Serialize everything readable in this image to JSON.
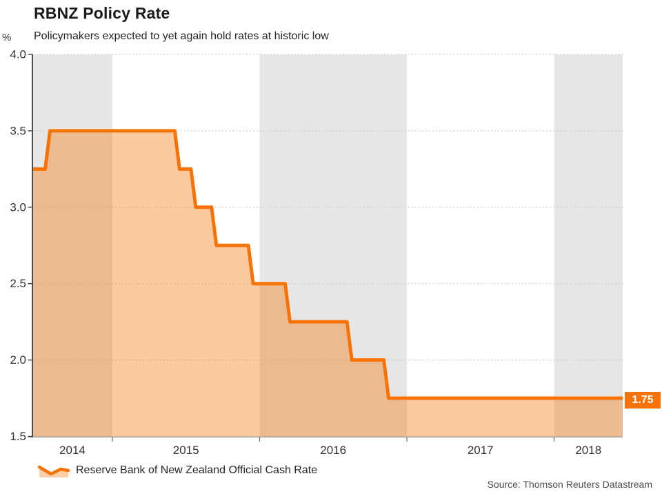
{
  "header": {
    "title": "RBNZ Policy Rate",
    "subtitle": "Policymakers expected to yet again hold rates at historic low",
    "unit_label": "%"
  },
  "legend": {
    "label": "Reserve Bank of New Zealand Official Cash Rate"
  },
  "footer": {
    "source": "Source: Thomson Reuters Datastream"
  },
  "chart_data": {
    "type": "area",
    "step": true,
    "title": "RBNZ Policy Rate",
    "subtitle": "Policymakers expected to yet again hold rates at historic low",
    "ylabel": "%",
    "xlim": [
      2014.457,
      2018.466
    ],
    "ylim": [
      1.5,
      4.0
    ],
    "yticks": [
      {
        "value": 4.0,
        "label": "4.0"
      },
      {
        "value": 3.5,
        "label": "3.5"
      },
      {
        "value": 3.0,
        "label": "3.0"
      },
      {
        "value": 2.5,
        "label": "2.5"
      },
      {
        "value": 2.0,
        "label": "2.0"
      },
      {
        "value": 1.5,
        "label": "1.5"
      }
    ],
    "xticks": [
      {
        "year": 2014,
        "label": "2014"
      },
      {
        "year": 2015,
        "label": "2015"
      },
      {
        "year": 2016,
        "label": "2016"
      },
      {
        "year": 2017,
        "label": "2017"
      },
      {
        "year": 2018,
        "label": "2018"
      }
    ],
    "shaded_years": [
      2014,
      2016,
      2018
    ],
    "grid": "dotted-horizontal",
    "legend_position": "bottom-left",
    "series": [
      {
        "name": "Reserve Bank of New Zealand Official Cash Rate",
        "points": [
          [
            2014.457,
            3.25
          ],
          [
            2014.56,
            3.5
          ],
          [
            2015.44,
            3.25
          ],
          [
            2015.55,
            3.0
          ],
          [
            2015.69,
            2.75
          ],
          [
            2015.94,
            2.5
          ],
          [
            2016.19,
            2.25
          ],
          [
            2016.61,
            2.0
          ],
          [
            2016.86,
            1.75
          ],
          [
            2018.466,
            1.75
          ]
        ]
      }
    ],
    "last_value_label": "1.75",
    "colors": {
      "line": "#f87306",
      "fill_opacity": 0.38,
      "band": "#e6e6e6",
      "grid": "#cfcfcf",
      "axis": "#3e3e3e",
      "bottom_axis": "#9d9d9d",
      "badge_bg": "#f87306",
      "badge_text": "#ffffff"
    }
  }
}
